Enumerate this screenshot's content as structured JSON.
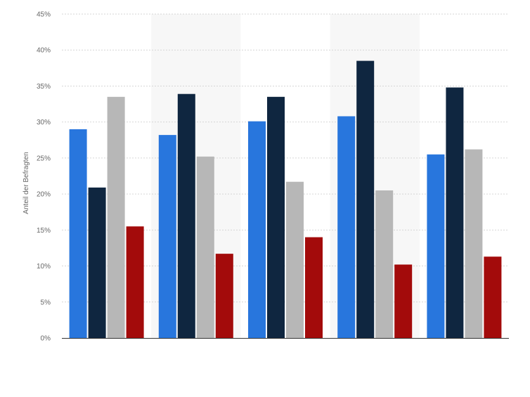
{
  "chart_data": {
    "type": "bar",
    "title": "",
    "xlabel": "",
    "ylabel": "Anteil der Befragten",
    "categories": [
      "",
      "",
      "",
      "",
      ""
    ],
    "ylim": [
      0,
      45
    ],
    "y_ticks": [
      "0%",
      "5%",
      "10%",
      "15%",
      "20%",
      "25%",
      "30%",
      "35%",
      "40%",
      "45%"
    ],
    "grid": true,
    "legend": "none",
    "series": [
      {
        "color": "#2876dd",
        "values": [
          29.0,
          28.2,
          30.1,
          30.8,
          25.5
        ]
      },
      {
        "color": "#0f2640",
        "values": [
          20.9,
          33.9,
          33.5,
          38.5,
          34.8
        ]
      },
      {
        "color": "#b7b7b7",
        "values": [
          33.5,
          25.2,
          21.7,
          20.5,
          26.2
        ]
      },
      {
        "color": "#a30b0b",
        "values": [
          15.5,
          11.7,
          14.0,
          10.2,
          11.3
        ]
      }
    ]
  }
}
